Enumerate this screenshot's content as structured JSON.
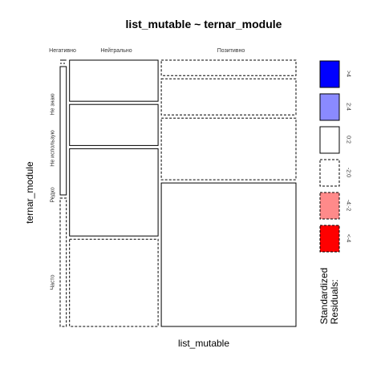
{
  "chart_data": {
    "type": "mosaic",
    "title": "list_mutable ~ ternar_module",
    "xlabel": "list_mutable",
    "ylabel": "ternar_module",
    "columns": [
      "Негативно",
      "Нейтрально",
      "Позитивно"
    ],
    "rows": [
      "Не знаю",
      "Не использую",
      "Редко",
      "Часто"
    ],
    "column_proportions": [
      0.027,
      0.386,
      0.587
    ],
    "row_proportions_by_column": [
      [
        0.0,
        0.0,
        0.5,
        0.5
      ],
      [
        0.16,
        0.16,
        0.34,
        0.34
      ],
      [
        0.06,
        0.141,
        0.24,
        0.559
      ]
    ],
    "residual_bins_by_column": [
      [
        "0:2",
        "-2:0",
        "0:2",
        "-2:0"
      ],
      [
        "0:2",
        "0:2",
        "0:2",
        "-2:0"
      ],
      [
        "-2:0",
        "-2:0",
        "-2:0",
        "0:2"
      ]
    ],
    "legend": {
      "title": "Standardized\nResiduals:",
      "entries": [
        {
          "label": ">4",
          "color": "#0000ff",
          "dashed": false
        },
        {
          "label": "2:4",
          "color": "#8a8aff",
          "dashed": false
        },
        {
          "label": "0:2",
          "color": "#ffffff",
          "dashed": false
        },
        {
          "label": "-2:0",
          "color": "#ffffff",
          "dashed": true
        },
        {
          "label": "-4:-2",
          "color": "#ff8a8a",
          "dashed": true
        },
        {
          "label": "<-4",
          "color": "#ff0000",
          "dashed": true
        }
      ]
    }
  }
}
